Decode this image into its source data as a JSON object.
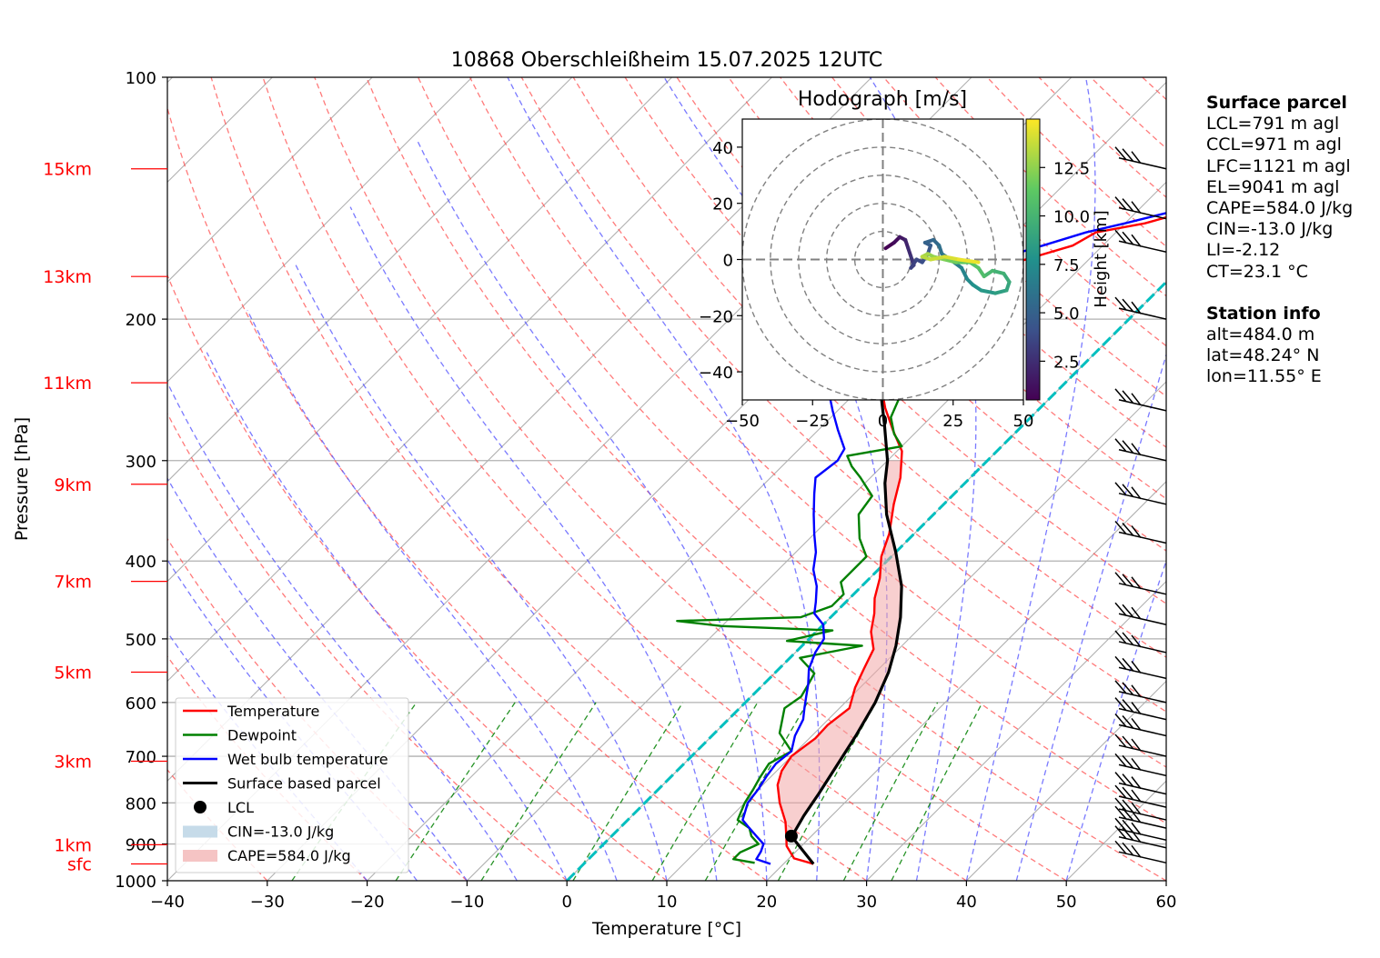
{
  "chart_data": [
    {
      "type": "line",
      "title": "10868 Oberschleißheim 15.07.2025 12UTC",
      "xlabel": "Temperature [°C]",
      "ylabel": "Pressure [hPa]",
      "x_scale": "skew-T (45° skew)",
      "y_scale": "log",
      "xlim": [
        -40,
        60
      ],
      "ylim": [
        1000,
        100
      ],
      "x_ticks": [
        "−40",
        "−30",
        "−20",
        "−10",
        "0",
        "10",
        "20",
        "30",
        "40",
        "50",
        "60"
      ],
      "y_ticks": [
        "100",
        "200",
        "300",
        "400",
        "500",
        "600",
        "700",
        "800",
        "900",
        "1000"
      ],
      "height_labels": [
        {
          "label": "sfc",
          "p": 953
        },
        {
          "label": "1km",
          "p": 902
        },
        {
          "label": "3km",
          "p": 710
        },
        {
          "label": "5km",
          "p": 550
        },
        {
          "label": "7km",
          "p": 424
        },
        {
          "label": "9km",
          "p": 321
        },
        {
          "label": "11km",
          "p": 240
        },
        {
          "label": "13km",
          "p": 177
        },
        {
          "label": "15km",
          "p": 130
        }
      ],
      "grid": true,
      "legend": {
        "placement": "lower left",
        "entries": [
          {
            "label": "Temperature",
            "color": "#ff0000",
            "kind": "line"
          },
          {
            "label": "Dewpoint",
            "color": "#008000",
            "kind": "line"
          },
          {
            "label": "Wet bulb temperature",
            "color": "#0000ff",
            "kind": "line"
          },
          {
            "label": "Surface based parcel",
            "color": "#000000",
            "kind": "line"
          },
          {
            "label": "LCL",
            "color": "#000000",
            "kind": "dot"
          },
          {
            "label": "CIN=-13.0 J/kg",
            "color": "#c6dbe9",
            "kind": "patch"
          },
          {
            "label": "CAPE=584.0 J/kg",
            "color": "#f5c4c4",
            "kind": "patch"
          }
        ]
      },
      "series": [
        {
          "name": "Temperature",
          "color": "#ff0000",
          "points": [
            [
              23.0,
              953
            ],
            [
              20.5,
              938
            ],
            [
              18.5,
              905
            ],
            [
              17.5,
              880
            ],
            [
              16.0,
              845
            ],
            [
              13.5,
              800
            ],
            [
              11.5,
              760
            ],
            [
              10.5,
              730
            ],
            [
              10.0,
              700
            ],
            [
              10.6,
              665
            ],
            [
              10.5,
              640
            ],
            [
              11.0,
              610
            ],
            [
              9.5,
              575
            ],
            [
              8.5,
              545
            ],
            [
              7.5,
              515
            ],
            [
              5.5,
              490
            ],
            [
              4.0,
              465
            ],
            [
              2.5,
              445
            ],
            [
              1.0,
              420
            ],
            [
              -1.0,
              395
            ],
            [
              -2.5,
              370
            ],
            [
              -5.0,
              340
            ],
            [
              -7.0,
              315
            ],
            [
              -9.5,
              292
            ],
            [
              -12.5,
              275
            ],
            [
              -15.5,
              258
            ],
            [
              -18.5,
              240
            ],
            [
              -20.0,
              225
            ],
            [
              -21.5,
              212
            ],
            [
              -19.5,
              200
            ],
            [
              -18.5,
              190
            ],
            [
              -18.5,
              178
            ],
            [
              -17.0,
              170
            ],
            [
              -13.0,
              162
            ],
            [
              -12.0,
              156
            ],
            [
              -8.0,
              152
            ],
            [
              -5.0,
              147
            ],
            [
              -3.5,
              144
            ],
            [
              -3.0,
              137
            ],
            [
              -1.5,
              133
            ],
            [
              -2.0,
              130
            ]
          ]
        },
        {
          "name": "Dewpoint",
          "color": "#008000",
          "points": [
            [
              17.0,
              950
            ],
            [
              14.5,
              940
            ],
            [
              14.5,
              922
            ],
            [
              15.5,
              900
            ],
            [
              14.0,
              880
            ],
            [
              13.0,
              860
            ],
            [
              11.0,
              840
            ],
            [
              10.0,
              800
            ],
            [
              9.5,
              770
            ],
            [
              9.0,
              745
            ],
            [
              8.5,
              715
            ],
            [
              9.5,
              690
            ],
            [
              6.5,
              655
            ],
            [
              4.5,
              610
            ],
            [
              5.0,
              590
            ],
            [
              4.5,
              570
            ],
            [
              4.0,
              552
            ],
            [
              1.0,
              528
            ],
            [
              6.0,
              510
            ],
            [
              -2.0,
              503
            ],
            [
              1.5,
              488
            ],
            [
              -10.0,
              482
            ],
            [
              -15.0,
              475
            ],
            [
              -3.0,
              470
            ],
            [
              -1.0,
              455
            ],
            [
              -1.0,
              440
            ],
            [
              -2.5,
              425
            ],
            [
              -2.5,
              395
            ],
            [
              -5.0,
              375
            ],
            [
              -7.5,
              350
            ],
            [
              -8.0,
              332
            ],
            [
              -11.0,
              315
            ],
            [
              -13.0,
              305
            ],
            [
              -14.5,
              296
            ],
            [
              -10.0,
              288
            ],
            [
              -12.0,
              278
            ],
            [
              -14.0,
              265
            ],
            [
              -15.0,
              252
            ],
            [
              -18.5,
              240
            ],
            [
              -22.5,
              228
            ],
            [
              -25.0,
              215
            ],
            [
              -28.5,
              200
            ],
            [
              -26.5,
              190
            ],
            [
              -27.5,
              178
            ],
            [
              -27.0,
              165
            ],
            [
              -29.0,
              158
            ],
            [
              -31.5,
              150
            ],
            [
              -30.0,
              142
            ],
            [
              -30.5,
              132
            ],
            [
              -29.5,
              130
            ]
          ]
        },
        {
          "name": "Wet bulb temperature",
          "color": "#0000ff",
          "points": [
            [
              18.7,
              953
            ],
            [
              16.8,
              940
            ],
            [
              16.5,
              920
            ],
            [
              16.0,
              900
            ],
            [
              14.5,
              880
            ],
            [
              13.0,
              860
            ],
            [
              11.5,
              840
            ],
            [
              10.3,
              800
            ],
            [
              10.0,
              770
            ],
            [
              9.5,
              740
            ],
            [
              9.2,
              715
            ],
            [
              9.5,
              690
            ],
            [
              8.3,
              660
            ],
            [
              7.5,
              630
            ],
            [
              6.5,
              610
            ],
            [
              5.5,
              590
            ],
            [
              4.5,
              570
            ],
            [
              3.0,
              545
            ],
            [
              2.0,
              520
            ],
            [
              1.5,
              500
            ],
            [
              0.0,
              480
            ],
            [
              -2.0,
              465
            ],
            [
              -3.0,
              450
            ],
            [
              -4.5,
              430
            ],
            [
              -6.5,
              410
            ],
            [
              -8.0,
              390
            ],
            [
              -10.0,
              370
            ],
            [
              -12.0,
              350
            ],
            [
              -14.0,
              330
            ],
            [
              -15.5,
              315
            ],
            [
              -15.0,
              300
            ],
            [
              -15.5,
              290
            ],
            [
              -18.0,
              275
            ],
            [
              -20.5,
              260
            ],
            [
              -23.0,
              245
            ],
            [
              -25.0,
              235
            ],
            [
              -26.0,
              225
            ],
            [
              -27.0,
              212
            ],
            [
              -24.5,
              205
            ],
            [
              -23.0,
              200
            ],
            [
              -25.5,
              190
            ],
            [
              -24.0,
              178
            ],
            [
              -20.0,
              170
            ],
            [
              -16.0,
              162
            ],
            [
              -13.0,
              156
            ],
            [
              -10.0,
              152
            ],
            [
              -6.5,
              147
            ],
            [
              -5.0,
              142
            ],
            [
              -3.5,
              137
            ],
            [
              -2.5,
              133
            ],
            [
              -3.0,
              130
            ]
          ]
        },
        {
          "name": "Surface based parcel",
          "color": "#000000",
          "points": [
            [
              23.0,
              953
            ],
            [
              18.0,
              880
            ],
            [
              17.9,
              870
            ],
            [
              17.2,
              830
            ],
            [
              16.5,
              780
            ],
            [
              15.5,
              720
            ],
            [
              14.4,
              660
            ],
            [
              13.0,
              600
            ],
            [
              11.3,
              550
            ],
            [
              9.4,
              510
            ],
            [
              7.0,
              470
            ],
            [
              4.0,
              430
            ],
            [
              0.0,
              390
            ],
            [
              -4.7,
              350
            ],
            [
              -8.0,
              320
            ],
            [
              -10.0,
              300
            ],
            [
              -14.0,
              270
            ],
            [
              -18.6,
              240
            ],
            [
              -22.3,
              220
            ],
            [
              -26.4,
              200
            ],
            [
              -31.0,
              180
            ],
            [
              -36.0,
              160
            ],
            [
              -39.5,
              146
            ],
            [
              -42.5,
              133
            ],
            [
              -45.0,
              130
            ]
          ]
        }
      ],
      "lcl": {
        "t": 18.0,
        "p": 880
      },
      "cape_shading": "between parcel and temperature, 880–300 hPa",
      "zero_isotherm_color": "#00bfbf",
      "wind_barbs_hPa": [
        950,
        910,
        890,
        860,
        840,
        810,
        780,
        740,
        700,
        660,
        630,
        600,
        560,
        520,
        480,
        440,
        380,
        340,
        300,
        260,
        200,
        165,
        150,
        130
      ]
    },
    {
      "type": "scatter",
      "title": "Hodograph [m/s]",
      "xlim": [
        -50,
        50
      ],
      "ylim": [
        -50,
        50
      ],
      "x_ticks": [
        "−50",
        "−25",
        "0",
        "25",
        "50"
      ],
      "y_ticks": [
        "40",
        "20",
        "0",
        "−20",
        "−40"
      ],
      "rings": [
        10,
        20,
        30,
        40,
        50
      ],
      "colorbar_label": "Height [km]",
      "colorbar_ticks": [
        "2.5",
        "5.0",
        "7.5",
        "10.0",
        "12.5"
      ],
      "colorbar_range": [
        0.5,
        15
      ],
      "points": [
        [
          1,
          4,
          0.5
        ],
        [
          4,
          6,
          1.0
        ],
        [
          6,
          8,
          1.5
        ],
        [
          8,
          7,
          2.0
        ],
        [
          9,
          4,
          2.4
        ],
        [
          10,
          1,
          2.8
        ],
        [
          11,
          -2,
          3.1
        ],
        [
          10,
          -3,
          3.4
        ],
        [
          12,
          0,
          3.7
        ],
        [
          14,
          -1,
          4.0
        ],
        [
          16,
          2,
          4.4
        ],
        [
          17,
          5,
          4.8
        ],
        [
          15,
          6,
          5.1
        ],
        [
          18,
          7,
          5.4
        ],
        [
          20,
          5,
          5.8
        ],
        [
          21,
          2,
          6.2
        ],
        [
          24,
          0,
          6.6
        ],
        [
          28,
          -3,
          7.0
        ],
        [
          30,
          -7,
          7.4
        ],
        [
          32,
          -9,
          7.8
        ],
        [
          35,
          -11,
          8.2
        ],
        [
          40,
          -12,
          8.6
        ],
        [
          44,
          -11,
          9.0
        ],
        [
          45,
          -8,
          9.4
        ],
        [
          43,
          -5,
          9.8
        ],
        [
          39,
          -4,
          10.2
        ],
        [
          36,
          -6,
          10.6
        ],
        [
          34,
          -3,
          11.0
        ],
        [
          31,
          -1,
          11.4
        ],
        [
          26,
          -1,
          11.8
        ],
        [
          22,
          0,
          12.2
        ],
        [
          18,
          1,
          12.6
        ],
        [
          16,
          2,
          13.0
        ],
        [
          14,
          1,
          13.4
        ],
        [
          17,
          0,
          13.8
        ],
        [
          22,
          1,
          14.2
        ],
        [
          27,
          0,
          14.6
        ],
        [
          34,
          -1,
          15.0
        ]
      ]
    }
  ],
  "info": {
    "surface_title": "Surface parcel",
    "surface_lines": [
      "LCL=791 m agl",
      "CCL=971 m agl",
      "LFC=1121 m agl",
      "EL=9041 m agl",
      "CAPE=584.0 J/kg",
      "CIN=-13.0 J/kg",
      "LI=-2.12",
      "CT=23.1 °C"
    ],
    "station_title": "Station info",
    "station_lines": [
      "alt=484.0 m",
      "lat=48.24° N",
      "lon=11.55° E"
    ]
  }
}
